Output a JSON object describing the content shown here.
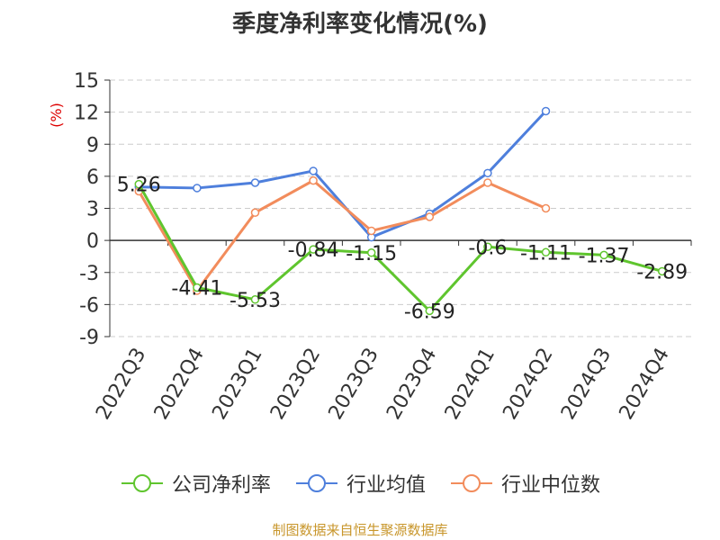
{
  "chart_data": {
    "type": "line",
    "title": "季度净利率变化情况(%)",
    "ylabel": "(%)",
    "categories": [
      "2022Q3",
      "2022Q4",
      "2023Q1",
      "2023Q2",
      "2023Q3",
      "2023Q4",
      "2024Q1",
      "2024Q2",
      "2024Q3",
      "2024Q4"
    ],
    "yticks": [
      15,
      12,
      9,
      6,
      3,
      0,
      -3,
      -6,
      -9
    ],
    "ylim": [
      -9,
      15
    ],
    "grid": true,
    "legend_position": "bottom",
    "series": [
      {
        "name": "公司净利率",
        "color": "#5fc52e",
        "values": [
          5.26,
          -4.41,
          -5.53,
          -0.84,
          -1.15,
          -6.59,
          -0.6,
          -1.11,
          -1.37,
          -2.89
        ],
        "labels": [
          "5.26",
          "-4.41",
          "-5.53",
          "-0.84",
          "-1.15",
          "-6.59",
          "-0.6",
          "-1.11",
          "-1.37",
          "-2.89"
        ]
      },
      {
        "name": "行业均值",
        "color": "#4e7fdc",
        "values": [
          5.0,
          4.9,
          5.4,
          6.5,
          0.3,
          2.5,
          6.3,
          12.1,
          null,
          null
        ]
      },
      {
        "name": "行业中位数",
        "color": "#f28c5c",
        "values": [
          4.6,
          -4.7,
          2.6,
          5.6,
          0.9,
          2.2,
          5.4,
          3.0,
          null,
          null
        ]
      }
    ]
  },
  "source": "制图数据来自恒生聚源数据库"
}
